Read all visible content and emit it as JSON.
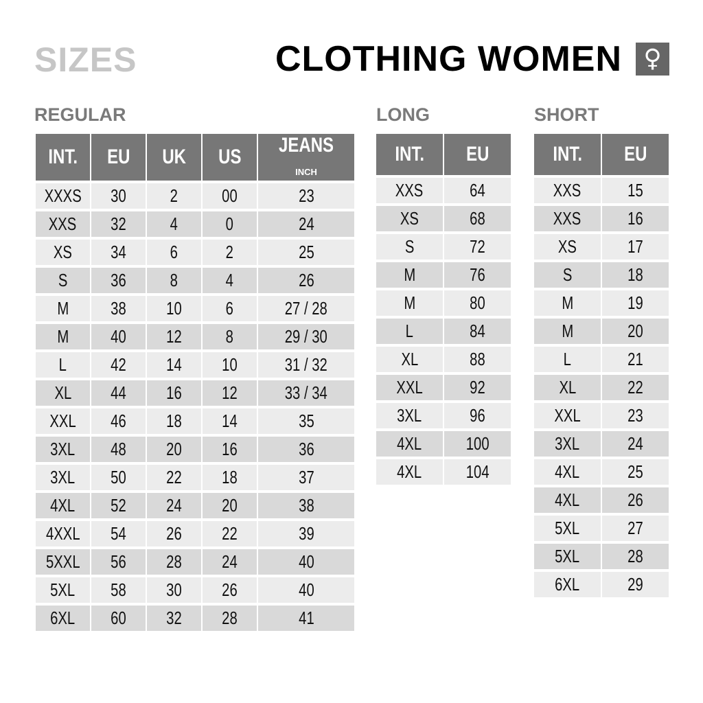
{
  "header": {
    "section_title": "SIZES",
    "title": "CLOTHING WOMEN",
    "gender_icon": "female-symbol-icon",
    "gender_glyph": "♀"
  },
  "colors": {
    "header_bg": "#777777",
    "row_light": "#ececec",
    "row_dark": "#d9d9d9",
    "title_gray": "#c6c6c6"
  },
  "regular": {
    "label": "REGULAR",
    "columns": [
      "INT.",
      "EU",
      "UK",
      "US",
      "JEANS"
    ],
    "jeans_unit": "INCH",
    "rows": [
      [
        "XXXS",
        "30",
        "2",
        "00",
        "23"
      ],
      [
        "XXS",
        "32",
        "4",
        "0",
        "24"
      ],
      [
        "XS",
        "34",
        "6",
        "2",
        "25"
      ],
      [
        "S",
        "36",
        "8",
        "4",
        "26"
      ],
      [
        "M",
        "38",
        "10",
        "6",
        "27 / 28"
      ],
      [
        "M",
        "40",
        "12",
        "8",
        "29 / 30"
      ],
      [
        "L",
        "42",
        "14",
        "10",
        "31 / 32"
      ],
      [
        "XL",
        "44",
        "16",
        "12",
        "33 / 34"
      ],
      [
        "XXL",
        "46",
        "18",
        "14",
        "35"
      ],
      [
        "3XL",
        "48",
        "20",
        "16",
        "36"
      ],
      [
        "3XL",
        "50",
        "22",
        "18",
        "37"
      ],
      [
        "4XL",
        "52",
        "24",
        "20",
        "38"
      ],
      [
        "4XXL",
        "54",
        "26",
        "22",
        "39"
      ],
      [
        "5XXL",
        "56",
        "28",
        "24",
        "40"
      ],
      [
        "5XL",
        "58",
        "30",
        "26",
        "40"
      ],
      [
        "6XL",
        "60",
        "32",
        "28",
        "41"
      ]
    ]
  },
  "long": {
    "label": "LONG",
    "columns": [
      "INT.",
      "EU"
    ],
    "rows": [
      [
        "XXS",
        "64"
      ],
      [
        "XS",
        "68"
      ],
      [
        "S",
        "72"
      ],
      [
        "M",
        "76"
      ],
      [
        "M",
        "80"
      ],
      [
        "L",
        "84"
      ],
      [
        "XL",
        "88"
      ],
      [
        "XXL",
        "92"
      ],
      [
        "3XL",
        "96"
      ],
      [
        "4XL",
        "100"
      ],
      [
        "4XL",
        "104"
      ]
    ]
  },
  "short": {
    "label": "SHORT",
    "columns": [
      "INT.",
      "EU"
    ],
    "rows": [
      [
        "XXS",
        "15"
      ],
      [
        "XXS",
        "16"
      ],
      [
        "XS",
        "17"
      ],
      [
        "S",
        "18"
      ],
      [
        "M",
        "19"
      ],
      [
        "M",
        "20"
      ],
      [
        "L",
        "21"
      ],
      [
        "XL",
        "22"
      ],
      [
        "XXL",
        "23"
      ],
      [
        "3XL",
        "24"
      ],
      [
        "4XL",
        "25"
      ],
      [
        "4XL",
        "26"
      ],
      [
        "5XL",
        "27"
      ],
      [
        "5XL",
        "28"
      ],
      [
        "6XL",
        "29"
      ]
    ]
  }
}
